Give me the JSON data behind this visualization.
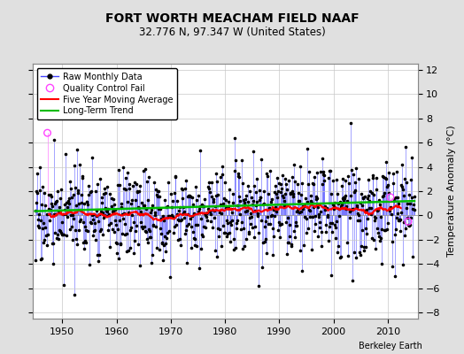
{
  "title": "FORT WORTH MEACHAM FIELD NAAF",
  "subtitle": "32.776 N, 97.347 W (United States)",
  "attribution": "Berkeley Earth",
  "ylabel": "Temperature Anomaly (°C)",
  "ylim": [
    -8.5,
    12.5
  ],
  "yticks": [
    -8,
    -6,
    -4,
    -2,
    0,
    2,
    4,
    6,
    8,
    10,
    12
  ],
  "year_start": 1945,
  "year_end": 2014,
  "background_color": "#e0e0e0",
  "plot_bg_color": "#ffffff",
  "raw_line_color": "#4444ff",
  "raw_marker_color": "#000000",
  "qc_fail_color": "#ff44ff",
  "moving_avg_color": "#ff0000",
  "trend_color": "#00bb00",
  "grid_color": "#c8c8c8",
  "trend_slope": 0.012,
  "trend_intercept": 0.35,
  "noise_std": 1.9,
  "seed": 17
}
